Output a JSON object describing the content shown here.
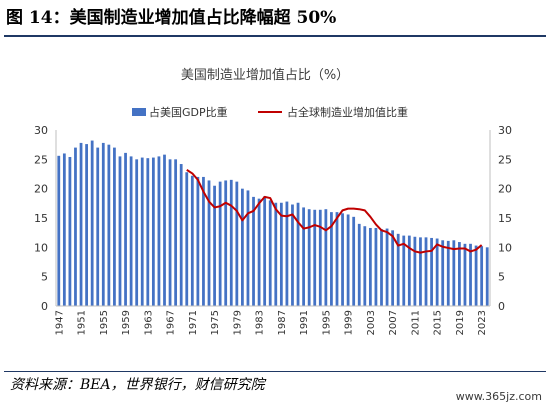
{
  "figure": {
    "title": "图 14：美国制造业增加值占比降幅超 50%",
    "source": "资料来源：BEA，世界银行，财信研究院",
    "watermark": "www.365jz.com"
  },
  "colors": {
    "bar": "#4472c4",
    "line": "#c00000",
    "rule": "#1f3864",
    "axis": "#bfbfbf"
  },
  "chart_data": {
    "type": "bar",
    "title": "美国制造业增加值占比（%）",
    "x": [
      1947,
      1948,
      1949,
      1950,
      1951,
      1952,
      1953,
      1954,
      1955,
      1956,
      1957,
      1958,
      1959,
      1960,
      1961,
      1962,
      1963,
      1964,
      1965,
      1966,
      1967,
      1968,
      1969,
      1970,
      1971,
      1972,
      1973,
      1974,
      1975,
      1976,
      1977,
      1978,
      1979,
      1980,
      1981,
      1982,
      1983,
      1984,
      1985,
      1986,
      1987,
      1988,
      1989,
      1990,
      1991,
      1992,
      1993,
      1994,
      1995,
      1996,
      1997,
      1998,
      1999,
      2000,
      2001,
      2002,
      2003,
      2004,
      2005,
      2006,
      2007,
      2008,
      2009,
      2010,
      2011,
      2012,
      2013,
      2014,
      2015,
      2016,
      2017,
      2018,
      2019,
      2020,
      2021,
      2022,
      2023,
      2024
    ],
    "xticks": [
      "1947",
      "1951",
      "1955",
      "1959",
      "1963",
      "1967",
      "1971",
      "1975",
      "1979",
      "1983",
      "1987",
      "1991",
      "1995",
      "1999",
      "2003",
      "2007",
      "2011",
      "2015",
      "2019",
      "2023"
    ],
    "yticks": [
      "0",
      "5",
      "10",
      "15",
      "20",
      "25",
      "30"
    ],
    "ylim": [
      0,
      30
    ],
    "series": [
      {
        "name": "占美国GDP比重",
        "kind": "bar",
        "values": [
          25.6,
          26.0,
          25.4,
          27.0,
          27.8,
          27.6,
          28.2,
          27.0,
          27.8,
          27.5,
          27.0,
          25.5,
          26.1,
          25.5,
          25.0,
          25.3,
          25.2,
          25.3,
          25.5,
          25.8,
          25.0,
          25.0,
          24.2,
          22.8,
          22.2,
          22.0,
          22.0,
          21.4,
          20.5,
          21.2,
          21.4,
          21.5,
          21.2,
          20.0,
          19.7,
          18.6,
          18.3,
          18.7,
          18.0,
          17.6,
          17.6,
          17.8,
          17.3,
          17.6,
          16.8,
          16.5,
          16.4,
          16.4,
          16.5,
          16.0,
          16.0,
          15.8,
          15.6,
          15.2,
          14.0,
          13.6,
          13.3,
          13.3,
          13.1,
          13.2,
          12.9,
          12.3,
          12.0,
          12.0,
          11.8,
          11.7,
          11.7,
          11.6,
          11.5,
          11.2,
          11.1,
          11.2,
          10.9,
          10.6,
          10.6,
          10.3,
          10.2,
          10.0
        ]
      },
      {
        "name": "占全球制造业增加值比重",
        "kind": "line",
        "x": [
          1970,
          1971,
          1972,
          1973,
          1974,
          1975,
          1976,
          1977,
          1978,
          1979,
          1980,
          1981,
          1982,
          1983,
          1984,
          1985,
          1986,
          1987,
          1988,
          1989,
          1990,
          1991,
          1992,
          1993,
          1994,
          1995,
          1996,
          1997,
          1998,
          1999,
          2000,
          2001,
          2002,
          2003,
          2004,
          2005,
          2006,
          2007,
          2008,
          2009,
          2010,
          2011,
          2012,
          2013,
          2014,
          2015,
          2016,
          2017,
          2018,
          2019,
          2020,
          2021,
          2022,
          2023
        ],
        "values": [
          23.2,
          22.6,
          21.5,
          19.5,
          17.8,
          16.8,
          17.0,
          17.6,
          17.1,
          16.2,
          14.6,
          15.8,
          16.2,
          17.5,
          18.6,
          18.4,
          16.5,
          15.4,
          15.3,
          15.6,
          14.3,
          13.2,
          13.4,
          13.8,
          13.5,
          12.9,
          13.6,
          15.0,
          16.3,
          16.6,
          16.6,
          16.5,
          16.3,
          15.2,
          13.9,
          12.9,
          12.6,
          11.9,
          10.3,
          10.6,
          9.9,
          9.3,
          9.1,
          9.3,
          9.4,
          10.5,
          10.1,
          9.9,
          9.7,
          9.8,
          9.8,
          9.3,
          9.6,
          10.4
        ]
      }
    ]
  }
}
